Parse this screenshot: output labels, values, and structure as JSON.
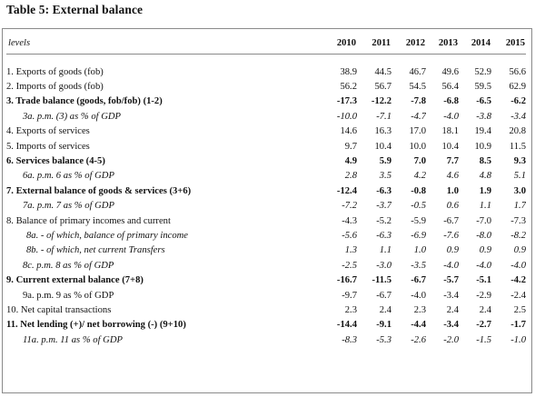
{
  "title": "Table 5: External balance",
  "header": {
    "label": "levels",
    "years": [
      "2010",
      "2011",
      "2012",
      "2013",
      "2014",
      "2015"
    ]
  },
  "rows": [
    {
      "label": "1. Exports of goods (fob)",
      "values": [
        "38.9",
        "44.5",
        "46.7",
        "49.6",
        "52.9",
        "56.6"
      ]
    },
    {
      "label": "2. Imports of goods (fob)",
      "values": [
        "56.2",
        "56.7",
        "54.5",
        "56.4",
        "59.5",
        "62.9"
      ]
    },
    {
      "label": "3. Trade balance (goods, fob/fob) (1-2)",
      "values": [
        "-17.3",
        "-12.2",
        "-7.8",
        "-6.8",
        "-6.5",
        "-6.2"
      ]
    },
    {
      "label": "3a. p.m. (3) as % of GDP",
      "values": [
        "-10.0",
        "-7.1",
        "-4.7",
        "-4.0",
        "-3.8",
        "-3.4"
      ]
    },
    {
      "label": "4. Exports of services",
      "values": [
        "14.6",
        "16.3",
        "17.0",
        "18.1",
        "19.4",
        "20.8"
      ]
    },
    {
      "label": "5. Imports of services",
      "values": [
        "9.7",
        "10.4",
        "10.0",
        "10.4",
        "10.9",
        "11.5"
      ]
    },
    {
      "label": "6. Services balance (4-5)",
      "values": [
        "4.9",
        "5.9",
        "7.0",
        "7.7",
        "8.5",
        "9.3"
      ]
    },
    {
      "label": "6a. p.m. 6 as % of GDP",
      "values": [
        "2.8",
        "3.5",
        "4.2",
        "4.6",
        "4.8",
        "5.1"
      ]
    },
    {
      "label": "7. External balance of goods & services (3+6)",
      "values": [
        "-12.4",
        "-6.3",
        "-0.8",
        "1.0",
        "1.9",
        "3.0"
      ]
    },
    {
      "label": "7a. p.m. 7 as % of GDP",
      "values": [
        "-7.2",
        "-3.7",
        "-0.5",
        "0.6",
        "1.1",
        "1.7"
      ]
    },
    {
      "label": "8. Balance of primary incomes and current",
      "values": [
        "-4.3",
        "-5.2",
        "-5.9",
        "-6.7",
        "-7.0",
        "-7.3"
      ]
    },
    {
      "label": "8a. - of which, balance of primary income",
      "values": [
        "-5.6",
        "-6.3",
        "-6.9",
        "-7.6",
        "-8.0",
        "-8.2"
      ]
    },
    {
      "label": "8b. - of which, net current Transfers",
      "values": [
        "1.3",
        "1.1",
        "1.0",
        "0.9",
        "0.9",
        "0.9"
      ]
    },
    {
      "label": "8c. p.m. 8 as % of GDP",
      "values": [
        "-2.5",
        "-3.0",
        "-3.5",
        "-4.0",
        "-4.0",
        "-4.0"
      ]
    },
    {
      "label": "9. Current external balance (7+8)",
      "values": [
        "-16.7",
        "-11.5",
        "-6.7",
        "-5.7",
        "-5.1",
        "-4.2"
      ]
    },
    {
      "label": "9a. p.m. 9 as % of GDP",
      "values": [
        "-9.7",
        "-6.7",
        "-4.0",
        "-3.4",
        "-2.9",
        "-2.4"
      ]
    },
    {
      "label": "10. Net capital transactions",
      "values": [
        "2.3",
        "2.4",
        "2.3",
        "2.4",
        "2.4",
        "2.5"
      ]
    },
    {
      "label": "11. Net lending (+)/ net borrowing (-) (9+10)",
      "values": [
        "-14.4",
        "-9.1",
        "-4.4",
        "-3.4",
        "-2.7",
        "-1.7"
      ]
    },
    {
      "label": "11a. p.m. 11 as % of GDP",
      "values": [
        "-8.3",
        "-5.3",
        "-2.6",
        "-2.0",
        "-1.5",
        "-1.0"
      ]
    }
  ]
}
